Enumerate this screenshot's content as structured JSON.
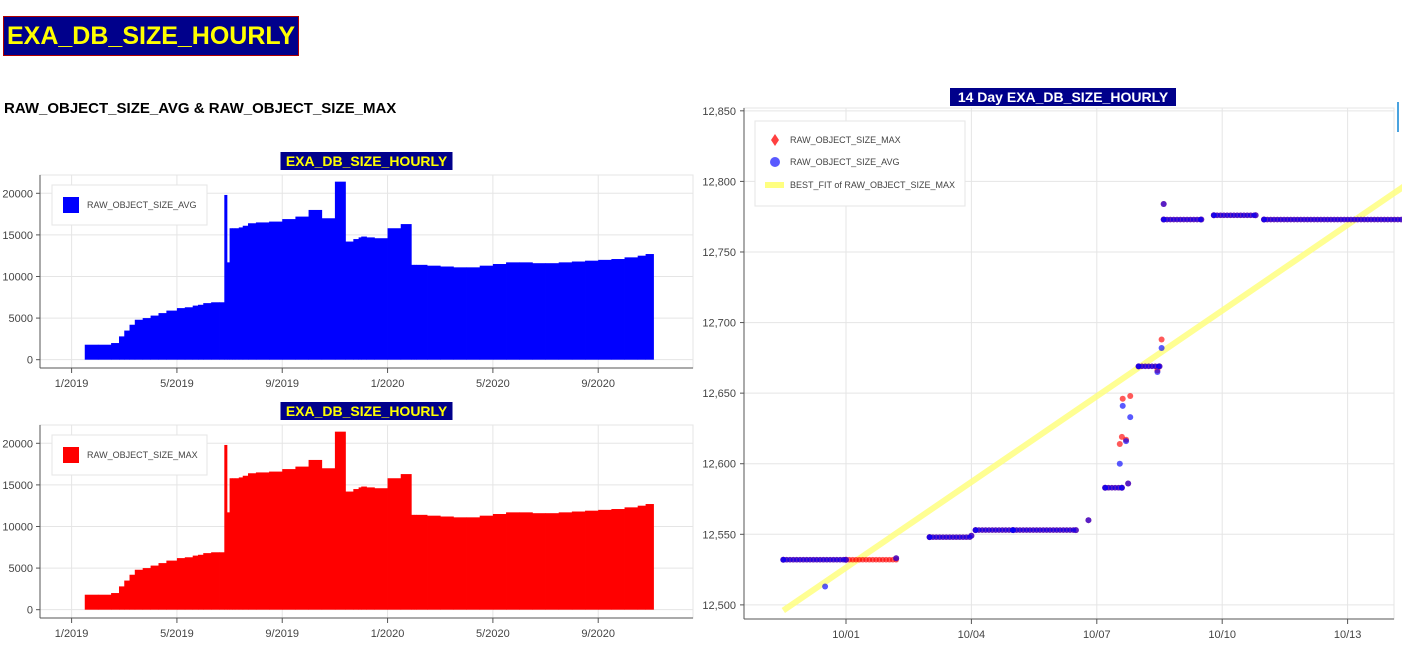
{
  "page": {
    "title": "EXA_DB_SIZE_HOURLY",
    "section_heading": "RAW_OBJECT_SIZE_AVG & RAW_OBJECT_SIZE_MAX"
  },
  "colors": {
    "title_bg": "#00008b",
    "title_fg": "#ffff00",
    "avg": "#0000ff",
    "max": "#ff0000",
    "best_fit": "#ffff80"
  },
  "chart_data": [
    {
      "id": "avg_bar",
      "type": "bar",
      "title": "EXA_DB_SIZE_HOURLY",
      "legend": [
        "RAW_OBJECT_SIZE_AVG"
      ],
      "legend_position": "top-left",
      "xticks": [
        "1/2019",
        "5/2019",
        "9/2019",
        "1/2020",
        "5/2020",
        "9/2020"
      ],
      "yticks": [
        "0",
        "5000",
        "10000",
        "15000",
        "20000"
      ],
      "ylim": [
        -1000,
        22200
      ],
      "grid": true,
      "x_months": [
        0.5,
        1,
        1.5,
        1.8,
        2,
        2.2,
        2.4,
        2.7,
        3,
        3.3,
        3.6,
        4,
        4.3,
        4.6,
        4.8,
        5,
        5.3,
        5.6,
        5.8,
        5.9,
        6,
        6.1,
        6.2,
        6.35,
        6.5,
        6.7,
        7,
        7.5,
        8,
        8.5,
        9,
        9.5,
        10,
        10.4,
        10.7,
        10.9,
        11,
        11.2,
        11.5,
        12,
        12.5,
        12.9,
        13,
        13.1,
        13.5,
        14,
        14.5,
        15,
        15.5,
        16,
        16.5,
        17,
        17.5,
        18,
        18.5,
        19,
        19.5,
        20,
        20.5,
        21,
        21.5,
        21.8
      ],
      "series": [
        {
          "name": "RAW_OBJECT_SIZE_AVG",
          "values": [
            1800,
            1800,
            2000,
            2800,
            3500,
            4200,
            4800,
            5000,
            5300,
            5600,
            5900,
            6200,
            6300,
            6500,
            6600,
            6800,
            6900,
            6900,
            19800,
            11700,
            15800,
            15800,
            15800,
            15900,
            16100,
            16400,
            16500,
            16600,
            16900,
            17200,
            18000,
            17000,
            21400,
            14200,
            14500,
            14700,
            14800,
            14700,
            14600,
            15800,
            16300,
            11400,
            11400,
            11400,
            11300,
            11200,
            11100,
            11100,
            11300,
            11500,
            11700,
            11700,
            11600,
            11600,
            11700,
            11800,
            11900,
            12000,
            12100,
            12300,
            12500,
            12700
          ]
        }
      ]
    },
    {
      "id": "max_bar",
      "type": "bar",
      "title": "EXA_DB_SIZE_HOURLY",
      "legend": [
        "RAW_OBJECT_SIZE_MAX"
      ],
      "legend_position": "top-left",
      "xticks": [
        "1/2019",
        "5/2019",
        "9/2019",
        "1/2020",
        "5/2020",
        "9/2020"
      ],
      "yticks": [
        "0",
        "5000",
        "10000",
        "15000",
        "20000"
      ],
      "ylim": [
        -1000,
        22200
      ],
      "grid": true,
      "x_months": [
        0.5,
        1,
        1.5,
        1.8,
        2,
        2.2,
        2.4,
        2.7,
        3,
        3.3,
        3.6,
        4,
        4.3,
        4.6,
        4.8,
        5,
        5.3,
        5.6,
        5.8,
        5.9,
        6,
        6.1,
        6.2,
        6.35,
        6.5,
        6.7,
        7,
        7.5,
        8,
        8.5,
        9,
        9.5,
        10,
        10.4,
        10.7,
        10.9,
        11,
        11.2,
        11.5,
        12,
        12.5,
        12.9,
        13,
        13.1,
        13.5,
        14,
        14.5,
        15,
        15.5,
        16,
        16.5,
        17,
        17.5,
        18,
        18.5,
        19,
        19.5,
        20,
        20.5,
        21,
        21.5,
        21.8
      ],
      "series": [
        {
          "name": "RAW_OBJECT_SIZE_MAX",
          "values": [
            1800,
            1800,
            2000,
            2800,
            3500,
            4200,
            4800,
            5000,
            5300,
            5600,
            5900,
            6200,
            6300,
            6500,
            6600,
            6800,
            6900,
            6900,
            19800,
            11700,
            15800,
            15800,
            15800,
            15900,
            16100,
            16400,
            16500,
            16600,
            16900,
            17200,
            18000,
            17000,
            21400,
            14200,
            14500,
            14700,
            14800,
            14700,
            14600,
            15800,
            16300,
            11400,
            11400,
            11400,
            11300,
            11200,
            11100,
            11100,
            11300,
            11500,
            11700,
            11700,
            11600,
            11600,
            11700,
            11800,
            11900,
            12000,
            12100,
            12300,
            12500,
            12700
          ]
        }
      ]
    },
    {
      "id": "scatter_14day",
      "type": "scatter",
      "title": "14 Day EXA_DB_SIZE_HOURLY",
      "legend": [
        "RAW_OBJECT_SIZE_MAX",
        "RAW_OBJECT_SIZE_AVG",
        "BEST_FIT of RAW_OBJECT_SIZE_MAX"
      ],
      "legend_position": "top-left",
      "xticks": [
        "10/01",
        "10/04",
        "10/07",
        "10/10",
        "10/13"
      ],
      "yticks": [
        "12,500",
        "12,550",
        "12,600",
        "12,650",
        "12,700",
        "12,750",
        "12,800",
        "12,850"
      ],
      "ylim": [
        12490,
        12852
      ],
      "grid": true,
      "x_days": [
        28.5,
        30.0,
        31.2,
        32.0,
        33.0,
        34.0,
        35.5,
        35.8,
        36.2,
        36.5,
        36.6,
        36.7,
        36.75,
        36.85,
        36.9,
        36.95,
        37.0,
        37.05,
        37.1,
        37.2,
        37.3,
        37.35,
        38.0,
        39.0,
        40.0,
        41.0,
        41.5,
        42.0,
        43.0,
        44.0,
        44.1,
        44.5,
        45.0
      ],
      "series": [
        {
          "name": "RAW_OBJECT_SIZE_MAX",
          "points": [
            [
              28.5,
              12532
            ],
            [
              30,
              12532
            ],
            [
              31.2,
              12533
            ],
            [
              32,
              12548
            ],
            [
              33,
              12549
            ],
            [
              33.1,
              12553
            ],
            [
              34,
              12553
            ],
            [
              35.5,
              12553
            ],
            [
              35.8,
              12560
            ],
            [
              36.2,
              12583
            ],
            [
              36.6,
              12583
            ],
            [
              36.55,
              12614
            ],
            [
              36.6,
              12619
            ],
            [
              36.62,
              12646
            ],
            [
              36.7,
              12617
            ],
            [
              36.75,
              12586
            ],
            [
              36.8,
              12648
            ],
            [
              37.0,
              12669
            ],
            [
              37.5,
              12669
            ],
            [
              37.45,
              12666
            ],
            [
              37.55,
              12688
            ],
            [
              37.6,
              12784
            ],
            [
              37.6,
              12773
            ],
            [
              38.5,
              12773
            ],
            [
              38.8,
              12776
            ],
            [
              39.8,
              12776
            ],
            [
              40,
              12773
            ],
            [
              44,
              12773
            ],
            [
              44.2,
              12760
            ],
            [
              44.6,
              12760
            ],
            [
              44.7,
              12769
            ],
            [
              45.3,
              12769
            ]
          ]
        },
        {
          "name": "RAW_OBJECT_SIZE_AVG",
          "points": [
            [
              28.5,
              12532
            ],
            [
              30,
              12532
            ],
            [
              29.5,
              12513
            ],
            [
              31.2,
              12533
            ],
            [
              32,
              12548
            ],
            [
              33,
              12549
            ],
            [
              33.1,
              12553
            ],
            [
              34,
              12553
            ],
            [
              35.5,
              12553
            ],
            [
              35.8,
              12560
            ],
            [
              36.2,
              12583
            ],
            [
              36.6,
              12583
            ],
            [
              36.55,
              12600
            ],
            [
              36.62,
              12641
            ],
            [
              36.7,
              12616
            ],
            [
              36.75,
              12586
            ],
            [
              36.8,
              12633
            ],
            [
              37.0,
              12669
            ],
            [
              37.5,
              12669
            ],
            [
              37.45,
              12665
            ],
            [
              37.55,
              12682
            ],
            [
              37.6,
              12784
            ],
            [
              37.6,
              12773
            ],
            [
              38.5,
              12773
            ],
            [
              38.8,
              12776
            ],
            [
              39.8,
              12776
            ],
            [
              40,
              12773
            ],
            [
              44,
              12773
            ],
            [
              44.2,
              12760
            ],
            [
              44.6,
              12760
            ],
            [
              44.7,
              12769
            ],
            [
              45.3,
              12769
            ]
          ]
        },
        {
          "name": "BEST_FIT of RAW_OBJECT_SIZE_MAX",
          "line": [
            [
              28.5,
              12496
            ],
            [
              45.3,
              12836
            ]
          ]
        }
      ]
    }
  ]
}
